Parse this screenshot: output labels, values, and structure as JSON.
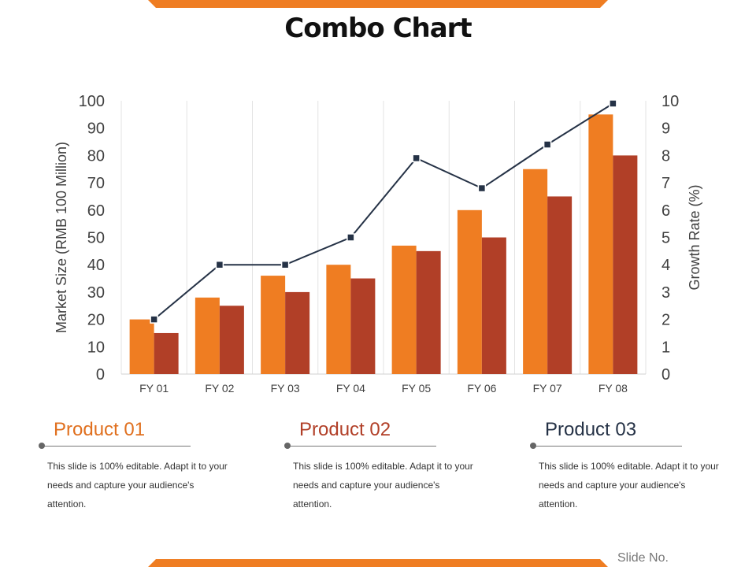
{
  "title": "Combo Chart",
  "chart_data": {
    "type": "bar+line",
    "categories": [
      "FY 01",
      "FY 02",
      "FY 03",
      "FY 04",
      "FY 05",
      "FY 06",
      "FY 07",
      "FY 08"
    ],
    "series": [
      {
        "name": "Product 01",
        "kind": "bar",
        "axis": "left",
        "color": "#ef7d22",
        "values": [
          20,
          28,
          36,
          40,
          47,
          60,
          75,
          95
        ]
      },
      {
        "name": "Product 02",
        "kind": "bar",
        "axis": "left",
        "color": "#b13f27",
        "values": [
          15,
          25,
          30,
          35,
          45,
          50,
          65,
          80
        ]
      },
      {
        "name": "Product 03",
        "kind": "line",
        "axis": "right",
        "color": "#253246",
        "values": [
          2,
          4,
          4,
          5,
          7.9,
          6.8,
          8.4,
          9.9
        ]
      }
    ],
    "ylabel": "Market Size (RMB 100 Million)",
    "y2label": "Growth Rate (%)",
    "ylim": [
      0,
      100
    ],
    "y2lim": [
      0,
      10
    ],
    "yticks": [
      "0",
      "10",
      "20",
      "30",
      "40",
      "50",
      "60",
      "70",
      "80",
      "90",
      "100"
    ],
    "y2ticks": [
      "0",
      "1",
      "2",
      "3",
      "4",
      "5",
      "6",
      "7",
      "8",
      "9",
      "10"
    ]
  },
  "products": [
    {
      "name": "Product 01",
      "color": "#e0701f",
      "desc": "This slide is 100% editable. Adapt it to your needs and capture your audience's attention."
    },
    {
      "name": "Product 02",
      "color": "#b13f27",
      "desc": "This slide is 100% editable. Adapt it to your needs and capture your audience's attention."
    },
    {
      "name": "Product 03",
      "color": "#253246",
      "desc": "This slide is 100% editable. Adapt it to your needs and capture your audience's attention."
    }
  ],
  "footer": {
    "slide_no": "Slide No."
  }
}
